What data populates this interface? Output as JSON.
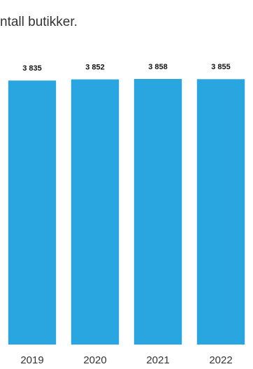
{
  "chart_data": {
    "type": "bar",
    "subtitle": "ntall butikker.",
    "categories": [
      "2019",
      "2020",
      "2021",
      "2022"
    ],
    "values": [
      3835,
      3852,
      3858,
      3855
    ],
    "value_labels": [
      "3 835",
      "3 852",
      "3 858",
      "3 855"
    ],
    "color": "#29a6df",
    "ylim": [
      0,
      4000
    ]
  }
}
